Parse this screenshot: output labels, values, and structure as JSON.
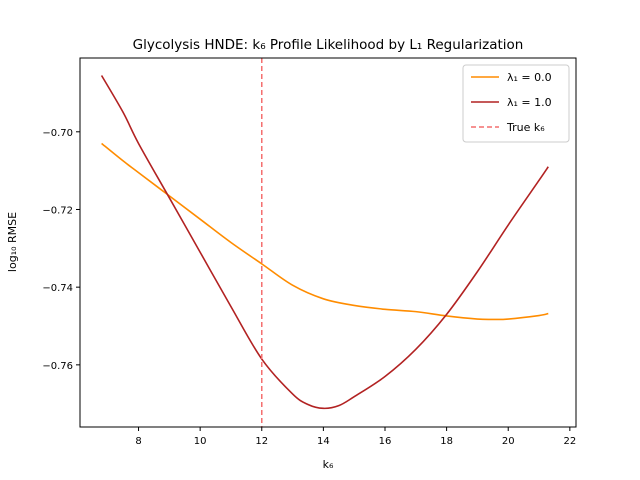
{
  "chart_data": {
    "type": "line",
    "title": "Glycolysis HNDE: k₆ Profile Likelihood by L₁ Regularization",
    "xlabel": "k₆",
    "ylabel": "log₁₀ RMSE",
    "xlim": [
      6.1,
      22.2
    ],
    "ylim": [
      -0.776,
      -0.681
    ],
    "xticks": [
      8,
      10,
      12,
      14,
      16,
      18,
      20,
      22
    ],
    "yticks": [
      -0.7,
      -0.72,
      -0.74,
      -0.76
    ],
    "xtick_labels": [
      "8",
      "10",
      "12",
      "14",
      "16",
      "18",
      "20",
      "22"
    ],
    "ytick_labels": [
      "−0.70",
      "−0.72",
      "−0.74",
      "−0.76"
    ],
    "grid": false,
    "legend_position": "top-right",
    "series": [
      {
        "name": "λ₁ = 0.0",
        "color": "#ff8c00",
        "x": [
          6.8,
          7.5,
          8.0,
          9.0,
          10.0,
          11.0,
          12.0,
          13.0,
          14.0,
          15.0,
          16.0,
          17.0,
          18.0,
          19.0,
          19.5,
          20.0,
          21.0,
          21.3
        ],
        "y": [
          -0.703,
          -0.7075,
          -0.7105,
          -0.7165,
          -0.7225,
          -0.7285,
          -0.734,
          -0.7395,
          -0.743,
          -0.7447,
          -0.7457,
          -0.7463,
          -0.7474,
          -0.7482,
          -0.7483,
          -0.7482,
          -0.7473,
          -0.7468
        ]
      },
      {
        "name": "λ₁ = 1.0",
        "color": "#b22222",
        "x": [
          6.8,
          7.5,
          8.0,
          9.0,
          10.0,
          11.0,
          12.0,
          13.0,
          13.5,
          14.0,
          14.5,
          15.0,
          16.0,
          17.0,
          18.0,
          19.0,
          20.0,
          21.0,
          21.3
        ],
        "y": [
          -0.6855,
          -0.695,
          -0.703,
          -0.717,
          -0.731,
          -0.745,
          -0.7585,
          -0.7675,
          -0.7702,
          -0.7712,
          -0.7705,
          -0.7682,
          -0.763,
          -0.756,
          -0.747,
          -0.736,
          -0.724,
          -0.7125,
          -0.709
        ]
      }
    ],
    "reference_line": {
      "name": "True k₆",
      "x": 12,
      "color": "#f46e6e",
      "style": "dashed"
    },
    "legend": {
      "items": [
        {
          "label": "λ₁ = 0.0",
          "color": "#ff8c00",
          "style": "solid"
        },
        {
          "label": "λ₁ = 1.0",
          "color": "#b22222",
          "style": "solid"
        },
        {
          "label": "True k₆",
          "color": "#f46e6e",
          "style": "dashed"
        }
      ]
    }
  }
}
